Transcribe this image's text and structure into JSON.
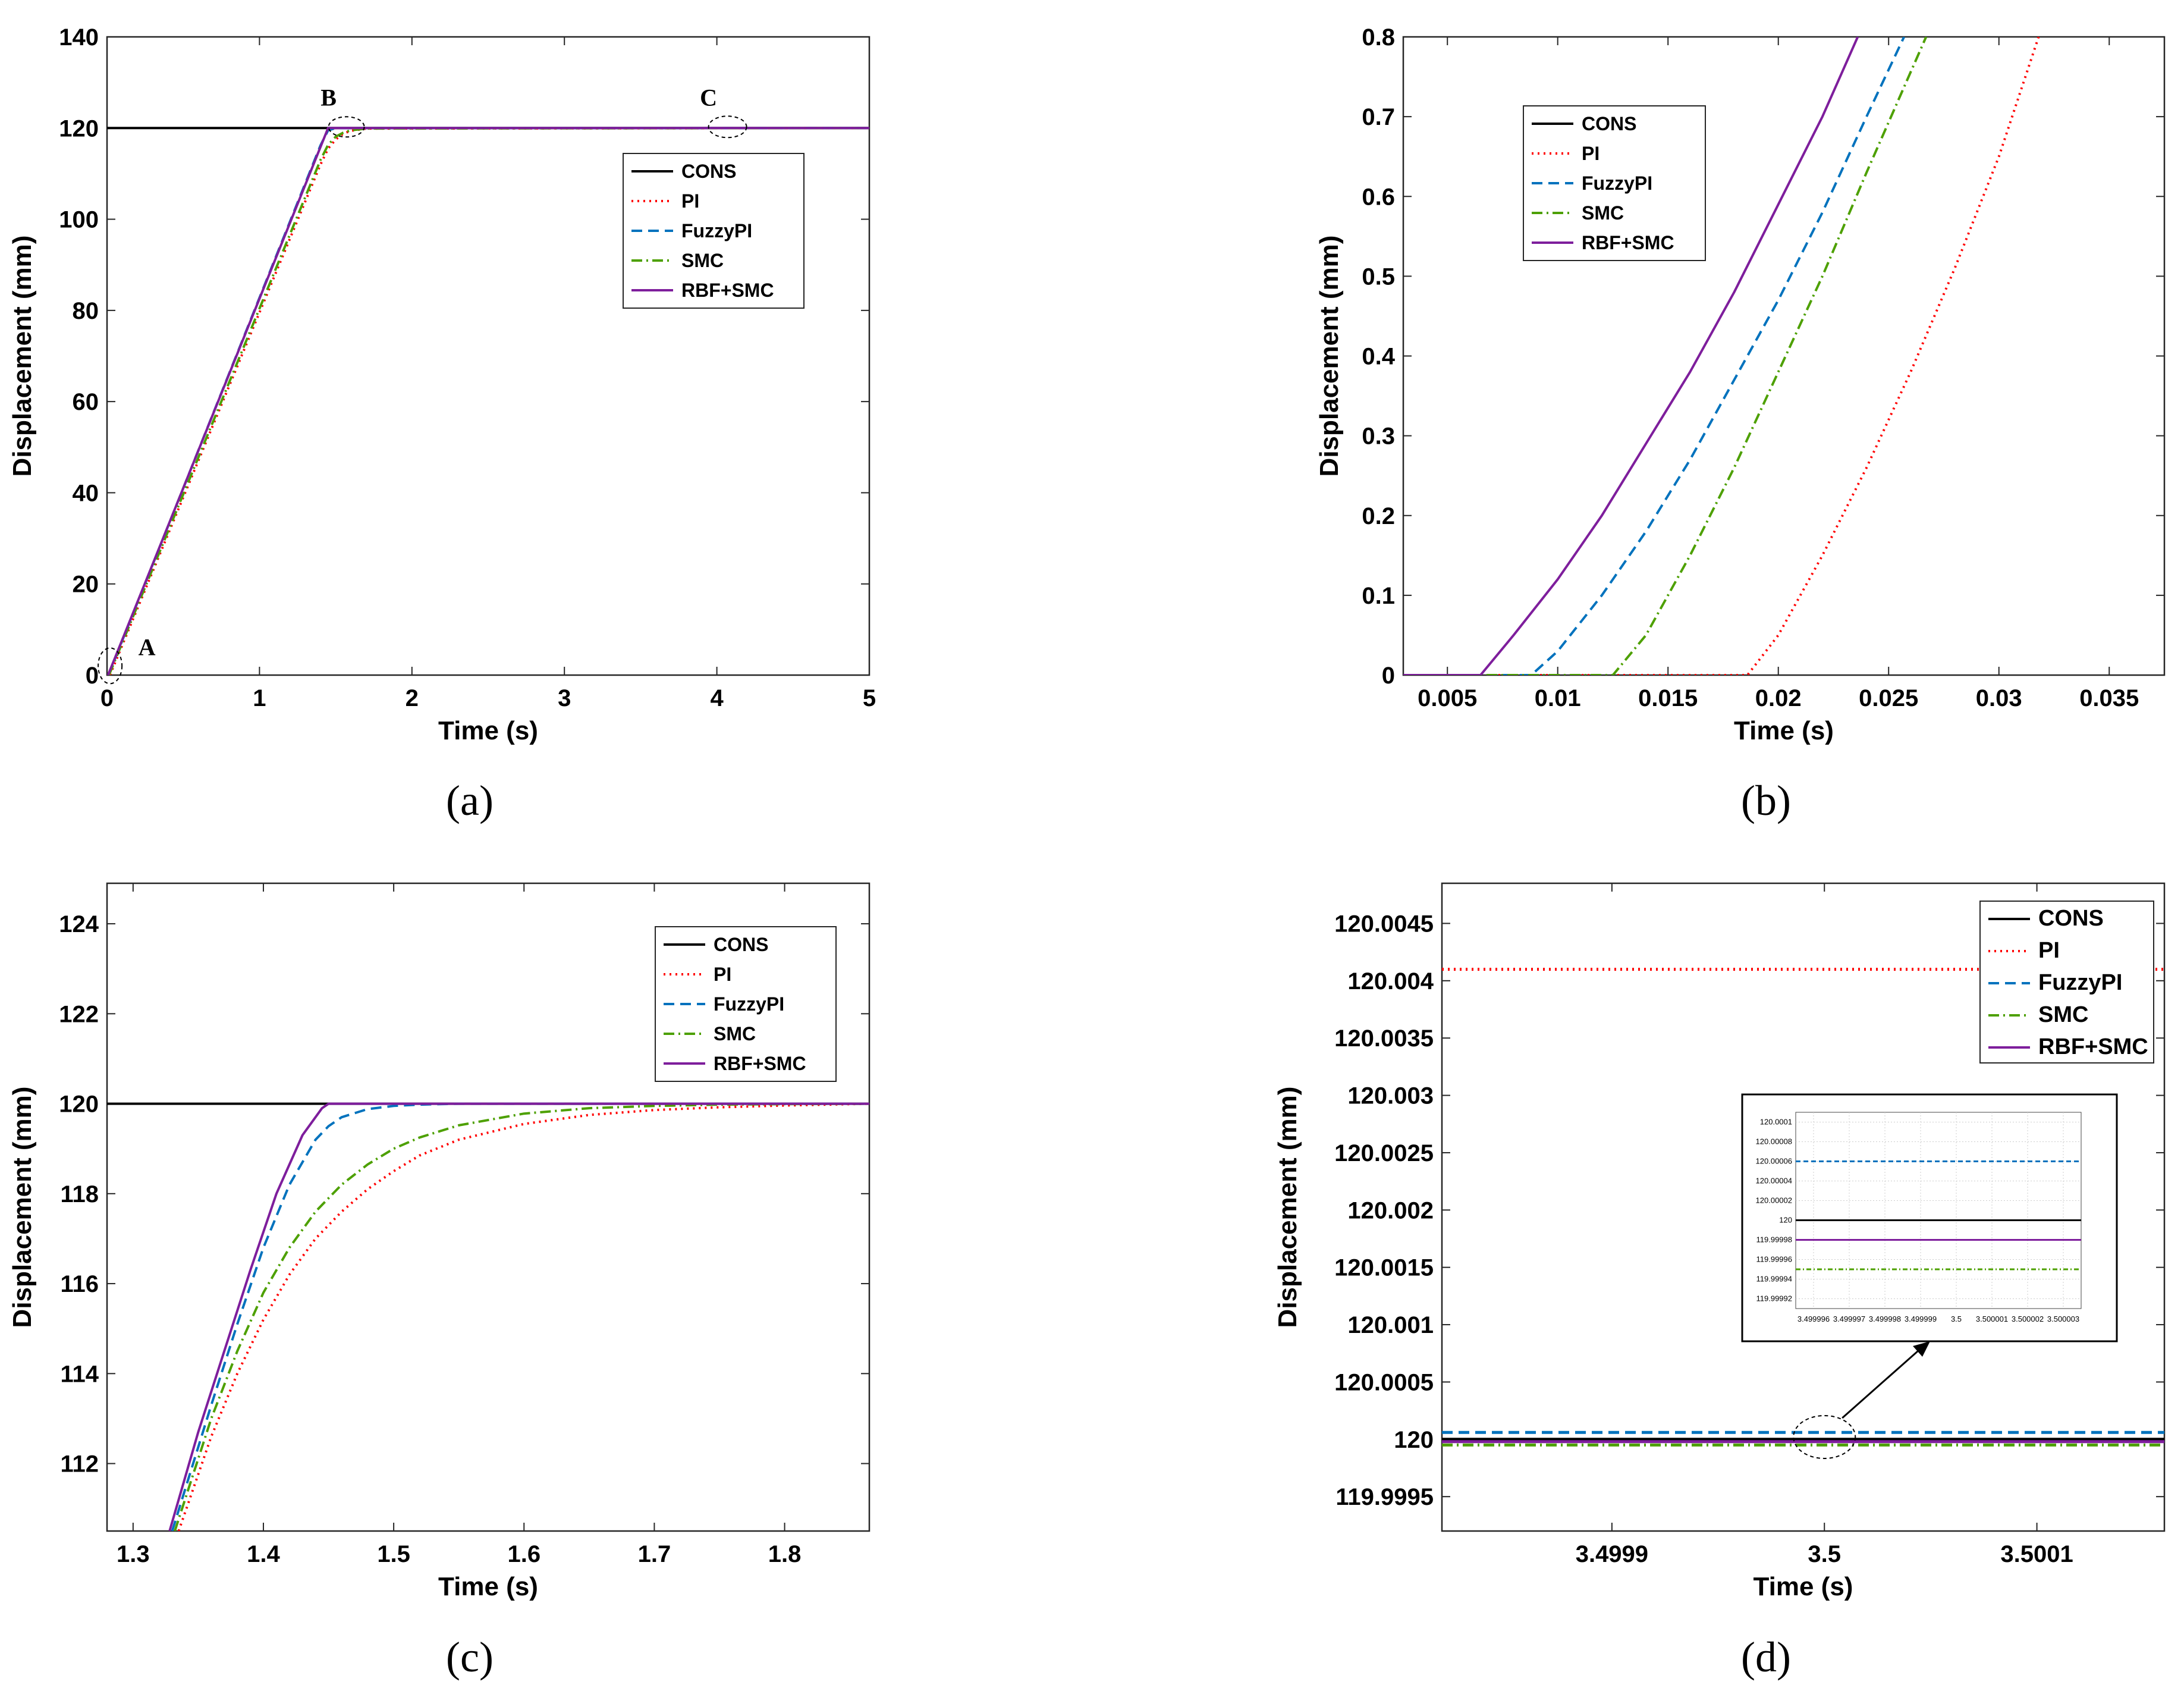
{
  "chart_data": [
    {
      "id": "a",
      "type": "line",
      "caption": "(a)",
      "xlabel": "Time (s)",
      "ylabel": "Displacement (mm)",
      "xlim": [
        0,
        5
      ],
      "ylim": [
        0,
        140
      ],
      "xticks": [
        0,
        1,
        2,
        3,
        4,
        5
      ],
      "xtick_labels": [
        "0",
        "1",
        "2",
        "3",
        "4",
        "5"
      ],
      "yticks": [
        0,
        20,
        40,
        60,
        80,
        100,
        120,
        140
      ],
      "ytick_labels": [
        "0",
        "20",
        "40",
        "60",
        "80",
        "100",
        "120",
        "140"
      ],
      "annotations": [
        {
          "label": "A",
          "x": 0.02,
          "y": 1
        },
        {
          "label": "B",
          "x": 1.5,
          "y": 120
        },
        {
          "label": "C",
          "x": 4.0,
          "y": 120
        }
      ],
      "legend": [
        "CONS",
        "PI",
        "FuzzyPI",
        "SMC",
        "RBF+SMC"
      ],
      "series": [
        {
          "name": "CONS",
          "x": [
            0,
            5
          ],
          "y": [
            120,
            120
          ]
        },
        {
          "name": "PI",
          "x": [
            0.019,
            1.4,
            1.45,
            1.5,
            1.55,
            1.6,
            1.7,
            5
          ],
          "y": [
            0,
            112,
            115.5,
            117.5,
            118.8,
            119.4,
            119.9,
            120
          ]
        },
        {
          "name": "FuzzyPI",
          "x": [
            0.009,
            1.4,
            1.45,
            1.5,
            5
          ],
          "y": [
            0,
            116.2,
            119.5,
            119.98,
            120
          ]
        },
        {
          "name": "SMC",
          "x": [
            0.013,
            1.4,
            1.45,
            1.5,
            1.55,
            1.6,
            1.7,
            5
          ],
          "y": [
            0,
            113,
            116.3,
            118.1,
            119,
            119.5,
            119.9,
            120
          ]
        },
        {
          "name": "RBF+SMC",
          "x": [
            0.0065,
            1.45,
            5
          ],
          "y": [
            0,
            120,
            120
          ]
        }
      ]
    },
    {
      "id": "b",
      "type": "line",
      "caption": "(b)",
      "xlabel": "Time (s)",
      "ylabel": "Displacement (mm)",
      "xlim": [
        0.003,
        0.0375
      ],
      "ylim": [
        0,
        0.8
      ],
      "xticks": [
        0.005,
        0.01,
        0.015,
        0.02,
        0.025,
        0.03,
        0.035
      ],
      "xtick_labels": [
        "0.005",
        "0.01",
        "0.015",
        "0.02",
        "0.025",
        "0.03",
        "0.035"
      ],
      "yticks": [
        0,
        0.1,
        0.2,
        0.3,
        0.4,
        0.5,
        0.6,
        0.7,
        0.8
      ],
      "ytick_labels": [
        "0",
        "0.1",
        "0.2",
        "0.3",
        "0.4",
        "0.5",
        "0.6",
        "0.7",
        "0.8"
      ],
      "legend": [
        "CONS",
        "PI",
        "FuzzyPI",
        "SMC",
        "RBF+SMC"
      ],
      "series": [
        {
          "name": "CONS",
          "x": [],
          "y": []
        },
        {
          "name": "PI",
          "x": [
            0.003,
            0.0186,
            0.02,
            0.022,
            0.024,
            0.026,
            0.028,
            0.03,
            0.0318
          ],
          "y": [
            0,
            0,
            0.05,
            0.15,
            0.26,
            0.38,
            0.51,
            0.65,
            0.8
          ]
        },
        {
          "name": "FuzzyPI",
          "x": [
            0.003,
            0.0088,
            0.01,
            0.012,
            0.014,
            0.016,
            0.018,
            0.02,
            0.022,
            0.024,
            0.0257
          ],
          "y": [
            0,
            0,
            0.03,
            0.1,
            0.18,
            0.27,
            0.37,
            0.47,
            0.58,
            0.7,
            0.8
          ]
        },
        {
          "name": "SMC",
          "x": [
            0.003,
            0.0125,
            0.014,
            0.016,
            0.018,
            0.02,
            0.022,
            0.024,
            0.0267
          ],
          "y": [
            0,
            0,
            0.05,
            0.15,
            0.26,
            0.38,
            0.5,
            0.63,
            0.8
          ]
        },
        {
          "name": "RBF+SMC",
          "x": [
            0.003,
            0.0065,
            0.008,
            0.01,
            0.012,
            0.014,
            0.016,
            0.018,
            0.02,
            0.022,
            0.0236
          ],
          "y": [
            0,
            0,
            0.05,
            0.12,
            0.2,
            0.29,
            0.38,
            0.48,
            0.59,
            0.7,
            0.8
          ]
        }
      ]
    },
    {
      "id": "c",
      "type": "line",
      "caption": "(c)",
      "xlabel": "Time (s)",
      "ylabel": "Displacement (mm)",
      "xlim": [
        1.28,
        1.865
      ],
      "ylim": [
        110.5,
        124.9
      ],
      "xticks": [
        1.3,
        1.4,
        1.5,
        1.6,
        1.7,
        1.8
      ],
      "xtick_labels": [
        "1.3",
        "1.4",
        "1.5",
        "1.6",
        "1.7",
        "1.8"
      ],
      "yticks": [
        112,
        114,
        116,
        118,
        120,
        122,
        124
      ],
      "ytick_labels": [
        "112",
        "114",
        "116",
        "118",
        "120",
        "122",
        "124"
      ],
      "legend": [
        "CONS",
        "PI",
        "FuzzyPI",
        "SMC",
        "RBF+SMC"
      ],
      "series": [
        {
          "name": "CONS",
          "x": [
            1.28,
            1.865
          ],
          "y": [
            120,
            120
          ]
        },
        {
          "name": "PI",
          "x": [
            1.335,
            1.36,
            1.38,
            1.4,
            1.42,
            1.44,
            1.46,
            1.48,
            1.5,
            1.52,
            1.55,
            1.6,
            1.65,
            1.7,
            1.75,
            1.8,
            1.865
          ],
          "y": [
            110.5,
            112.6,
            114.0,
            115.2,
            116.2,
            117.0,
            117.6,
            118.1,
            118.5,
            118.85,
            119.2,
            119.55,
            119.75,
            119.86,
            119.92,
            119.96,
            120
          ]
        },
        {
          "name": "FuzzyPI",
          "x": [
            1.33,
            1.36,
            1.38,
            1.4,
            1.42,
            1.44,
            1.45,
            1.46,
            1.48,
            1.5,
            1.52,
            1.55,
            1.6,
            1.865
          ],
          "y": [
            110.5,
            113.3,
            115.1,
            116.8,
            118.2,
            119.2,
            119.5,
            119.7,
            119.88,
            119.95,
            119.98,
            120,
            120,
            120
          ]
        },
        {
          "name": "SMC",
          "x": [
            1.332,
            1.36,
            1.38,
            1.4,
            1.42,
            1.44,
            1.46,
            1.48,
            1.5,
            1.52,
            1.55,
            1.6,
            1.65,
            1.7,
            1.75,
            1.8,
            1.865
          ],
          "y": [
            110.5,
            113.0,
            114.5,
            115.8,
            116.8,
            117.6,
            118.2,
            118.65,
            119.0,
            119.25,
            119.52,
            119.78,
            119.9,
            119.95,
            119.98,
            119.99,
            120
          ]
        },
        {
          "name": "RBF+SMC",
          "x": [
            1.328,
            1.35,
            1.37,
            1.39,
            1.41,
            1.43,
            1.445,
            1.45,
            1.865
          ],
          "y": [
            110.5,
            112.7,
            114.5,
            116.3,
            118.0,
            119.3,
            119.9,
            120,
            120
          ]
        }
      ]
    },
    {
      "id": "d",
      "type": "line",
      "caption": "(d)",
      "xlabel": "Time (s)",
      "ylabel": "Displacement (mm)",
      "xlim": [
        3.49982,
        3.50016
      ],
      "ylim": [
        119.9992,
        120.00485
      ],
      "xticks": [
        3.4999,
        3.5,
        3.5001
      ],
      "xtick_labels": [
        "3.4999",
        "3.5",
        "3.5001"
      ],
      "yticks": [
        119.9995,
        120,
        120.0005,
        120.001,
        120.0015,
        120.002,
        120.0025,
        120.003,
        120.0035,
        120.004,
        120.0045
      ],
      "ytick_labels": [
        "119.9995",
        "120",
        "120.0005",
        "120.001",
        "120.0015",
        "120.002",
        "120.0025",
        "120.003",
        "120.0035",
        "120.004",
        "120.0045"
      ],
      "legend": [
        "CONS",
        "PI",
        "FuzzyPI",
        "SMC",
        "RBF+SMC"
      ],
      "series": [
        {
          "name": "CONS",
          "x": [
            3.49982,
            3.50016
          ],
          "y": [
            120.0,
            120.0
          ]
        },
        {
          "name": "PI",
          "x": [
            3.49982,
            3.50016
          ],
          "y": [
            120.0041,
            120.0041
          ]
        },
        {
          "name": "FuzzyPI",
          "x": [
            3.49982,
            3.50016
          ],
          "y": [
            120.00006,
            120.00006
          ]
        },
        {
          "name": "SMC",
          "x": [
            3.49982,
            3.50016
          ],
          "y": [
            119.99995,
            119.99995
          ]
        },
        {
          "name": "RBF+SMC",
          "x": [
            3.49982,
            3.50016
          ],
          "y": [
            119.99998,
            119.99998
          ]
        }
      ],
      "inset": {
        "xlim": [
          3.4999955,
          3.5000035
        ],
        "ylim": [
          119.99991,
          120.00011
        ],
        "xticks": [
          3.499996,
          3.499997,
          3.499998,
          3.499999,
          3.5,
          3.500001,
          3.500002,
          3.500003
        ],
        "xtick_labels": [
          "3.499996",
          "3.499997",
          "3.499998",
          "3.499999",
          "3.5",
          "3.500001",
          "3.500002",
          "3.500003"
        ],
        "yticks": [
          119.99992,
          119.99994,
          119.99996,
          119.99998,
          120,
          120.00002,
          120.00004,
          120.00006,
          120.00008,
          120.0001
        ],
        "ytick_labels": [
          "119.99992",
          "119.99994",
          "119.99996",
          "119.99998",
          "120",
          "120.00002",
          "120.00004",
          "120.00006",
          "120.00008",
          "120.0001"
        ],
        "series": [
          {
            "name": "CONS",
            "y": 120.0
          },
          {
            "name": "FuzzyPI",
            "y": 120.00006
          },
          {
            "name": "SMC",
            "y": 119.99995
          },
          {
            "name": "RBF+SMC",
            "y": 119.99998
          }
        ]
      }
    }
  ],
  "styles": {
    "CONS": {
      "color": "#000000",
      "dash": ""
    },
    "PI": {
      "color": "#ff0000",
      "dash": "3 7"
    },
    "FuzzyPI": {
      "color": "#0072bd",
      "dash": "18 10"
    },
    "SMC": {
      "color": "#4da000",
      "dash": "18 7 3 7"
    },
    "RBF+SMC": {
      "color": "#7e1e9c",
      "dash": ""
    }
  }
}
